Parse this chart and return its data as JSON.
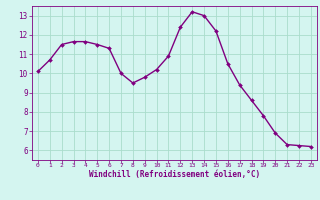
{
  "x": [
    0,
    1,
    2,
    3,
    4,
    5,
    6,
    7,
    8,
    9,
    10,
    11,
    12,
    13,
    14,
    15,
    16,
    17,
    18,
    19,
    20,
    21,
    22,
    23
  ],
  "y": [
    10.1,
    10.7,
    11.5,
    11.65,
    11.65,
    11.5,
    11.3,
    10.0,
    9.5,
    9.8,
    10.2,
    10.9,
    12.4,
    13.2,
    13.0,
    12.2,
    10.5,
    9.4,
    8.6,
    7.8,
    6.9,
    6.3,
    6.25,
    6.2
  ],
  "line_color": "#800080",
  "marker_color": "#800080",
  "bg_color": "#d4f5f0",
  "grid_color": "#aaddcc",
  "xlabel": "Windchill (Refroidissement éolien,°C)",
  "xlabel_color": "#800080",
  "tick_color": "#800080",
  "ylim": [
    5.5,
    13.5
  ],
  "xlim": [
    -0.5,
    23.5
  ],
  "yticks": [
    6,
    7,
    8,
    9,
    10,
    11,
    12,
    13
  ],
  "xticks": [
    0,
    1,
    2,
    3,
    4,
    5,
    6,
    7,
    8,
    9,
    10,
    11,
    12,
    13,
    14,
    15,
    16,
    17,
    18,
    19,
    20,
    21,
    22,
    23
  ],
  "xtick_labels": [
    "0",
    "1",
    "2",
    "3",
    "4",
    "5",
    "6",
    "7",
    "8",
    "9",
    "10",
    "11",
    "12",
    "13",
    "14",
    "15",
    "16",
    "17",
    "18",
    "19",
    "20",
    "21",
    "22",
    "23"
  ]
}
